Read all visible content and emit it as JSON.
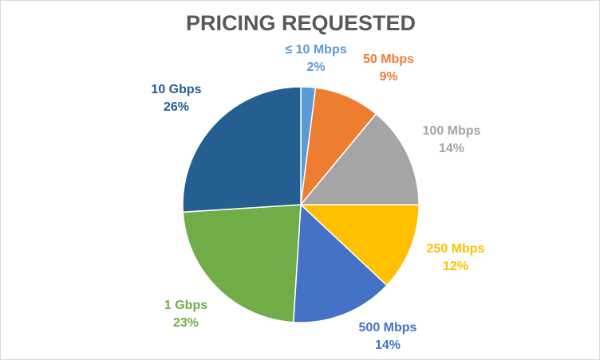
{
  "chart_data": {
    "type": "pie",
    "title": "PRICING REQUESTED",
    "slices": [
      {
        "label": "≤ 10 Mbps",
        "value": 2,
        "pct_label": "2%",
        "color": "#5b9bd5"
      },
      {
        "label": "50 Mbps",
        "value": 9,
        "pct_label": "9%",
        "color": "#ed7d31"
      },
      {
        "label": "100 Mbps",
        "value": 14,
        "pct_label": "14%",
        "color": "#a5a5a5"
      },
      {
        "label": "250 Mbps",
        "value": 12,
        "pct_label": "12%",
        "color": "#ffc000"
      },
      {
        "label": "500 Mbps",
        "value": 14,
        "pct_label": "14%",
        "color": "#4472c4"
      },
      {
        "label": "1 Gbps",
        "value": 23,
        "pct_label": "23%",
        "color": "#70ad47"
      },
      {
        "label": "10 Gbps",
        "value": 26,
        "pct_label": "26%",
        "color": "#255e91"
      }
    ],
    "legend": "none",
    "data_labels": "outside"
  }
}
